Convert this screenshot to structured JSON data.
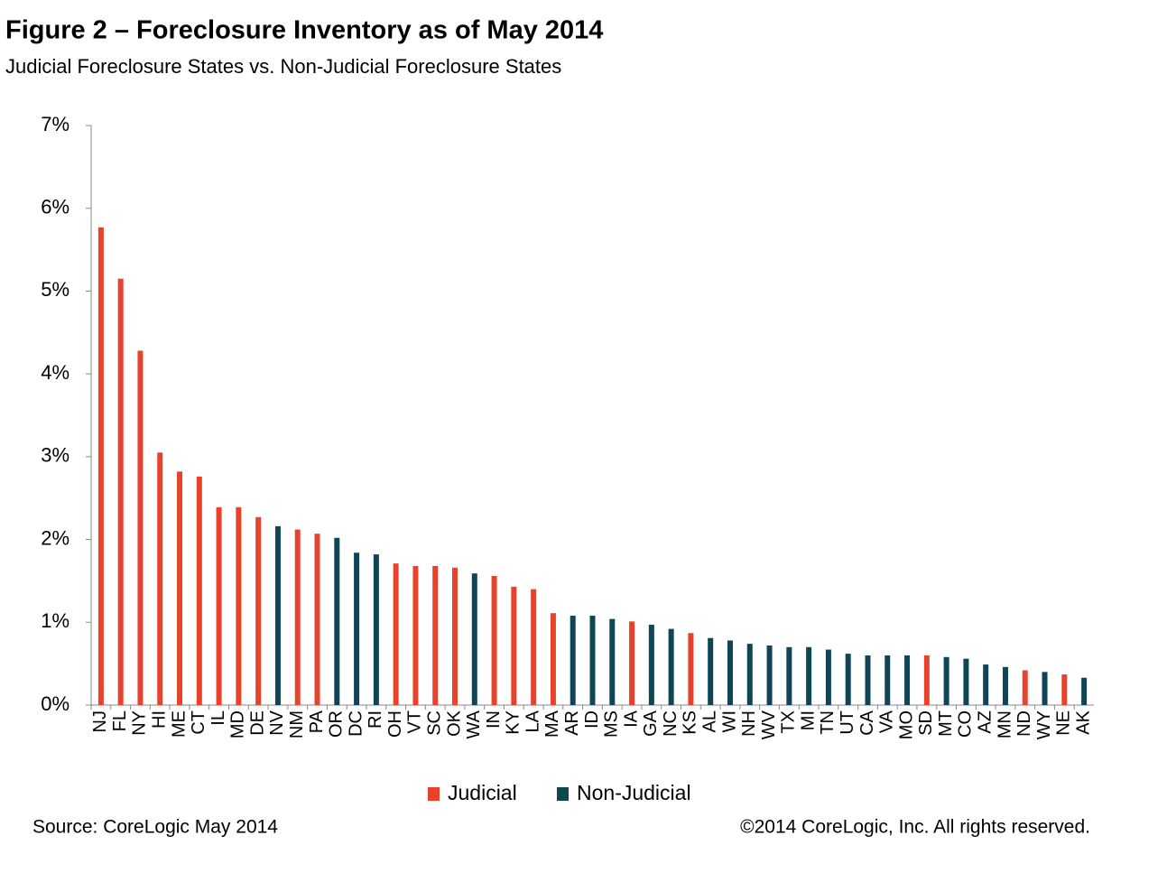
{
  "chart_data": {
    "type": "bar",
    "title": "Figure 2 – Foreclosure Inventory as of May 2014",
    "subtitle": "Judicial Foreclosure States vs. Non-Judicial Foreclosure States",
    "source": "Source: CoreLogic  May 2014",
    "copyright": "©2014 CoreLogic, Inc.  All rights reserved.",
    "categories": [
      "NJ",
      "FL",
      "NY",
      "HI",
      "ME",
      "CT",
      "IL",
      "MD",
      "DE",
      "NV",
      "NM",
      "PA",
      "OR",
      "DC",
      "RI",
      "OH",
      "VT",
      "SC",
      "OK",
      "WA",
      "IN",
      "KY",
      "LA",
      "MA",
      "AR",
      "ID",
      "MS",
      "IA",
      "GA",
      "NC",
      "KS",
      "AL",
      "WI",
      "NH",
      "WV",
      "TX",
      "MI",
      "TN",
      "UT",
      "CA",
      "VA",
      "MO",
      "SD",
      "MT",
      "CO",
      "AZ",
      "MN",
      "ND",
      "WY",
      "NE",
      "AK"
    ],
    "series": [
      {
        "name": "Judicial",
        "color": "#e8412c",
        "values": [
          5.77,
          5.15,
          4.28,
          3.05,
          2.82,
          2.76,
          2.39,
          2.39,
          2.27,
          null,
          2.12,
          2.07,
          null,
          null,
          null,
          1.71,
          1.68,
          1.68,
          1.66,
          null,
          1.56,
          1.43,
          1.4,
          1.11,
          null,
          null,
          null,
          1.01,
          null,
          null,
          0.87,
          null,
          null,
          null,
          null,
          null,
          null,
          null,
          null,
          null,
          null,
          null,
          0.6,
          null,
          null,
          null,
          null,
          0.42,
          null,
          0.37,
          null
        ]
      },
      {
        "name": "Non-Judicial",
        "color": "#0e4557",
        "values": [
          null,
          null,
          null,
          null,
          null,
          null,
          null,
          null,
          null,
          2.16,
          null,
          null,
          2.02,
          1.84,
          1.82,
          null,
          null,
          null,
          null,
          1.59,
          null,
          null,
          null,
          null,
          1.08,
          1.08,
          1.04,
          null,
          0.97,
          0.92,
          null,
          0.81,
          0.78,
          0.74,
          0.72,
          0.7,
          0.7,
          0.67,
          0.62,
          0.6,
          0.6,
          0.6,
          null,
          0.58,
          0.56,
          0.49,
          0.46,
          null,
          0.4,
          null,
          0.33
        ]
      }
    ],
    "ylim": [
      0,
      7
    ],
    "yticks": [
      {
        "value": 0,
        "label": "0%"
      },
      {
        "value": 1,
        "label": "1%"
      },
      {
        "value": 2,
        "label": "2%"
      },
      {
        "value": 3,
        "label": "3%"
      },
      {
        "value": 4,
        "label": "4%"
      },
      {
        "value": 5,
        "label": "5%"
      },
      {
        "value": 6,
        "label": "6%"
      },
      {
        "value": 7,
        "label": "7%"
      }
    ],
    "grid": false
  }
}
